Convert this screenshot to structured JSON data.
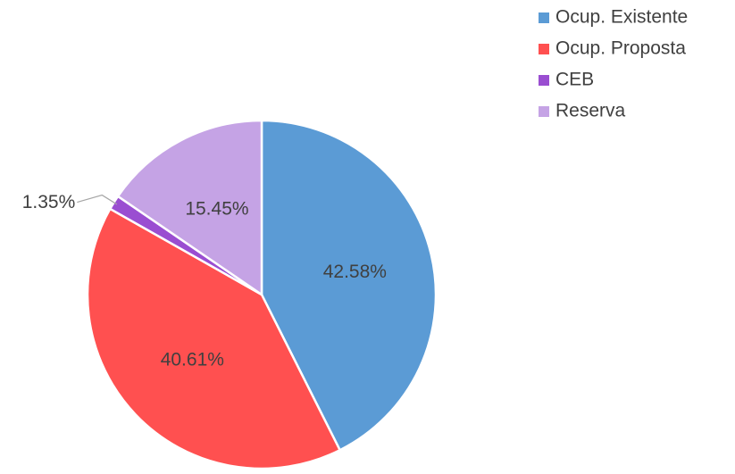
{
  "chart_data": {
    "type": "pie",
    "categories": [
      "Ocup. Existente",
      "Ocup. Proposta",
      "CEB",
      "Reserva"
    ],
    "values": [
      42.58,
      40.61,
      1.35,
      15.45
    ],
    "value_labels": [
      "42.58%",
      "40.61%",
      "1.35%",
      "15.45%"
    ],
    "colors": [
      "#5b9bd5",
      "#ff5050",
      "#9a4ed1",
      "#c5a3e5"
    ],
    "legend": "top-right"
  }
}
